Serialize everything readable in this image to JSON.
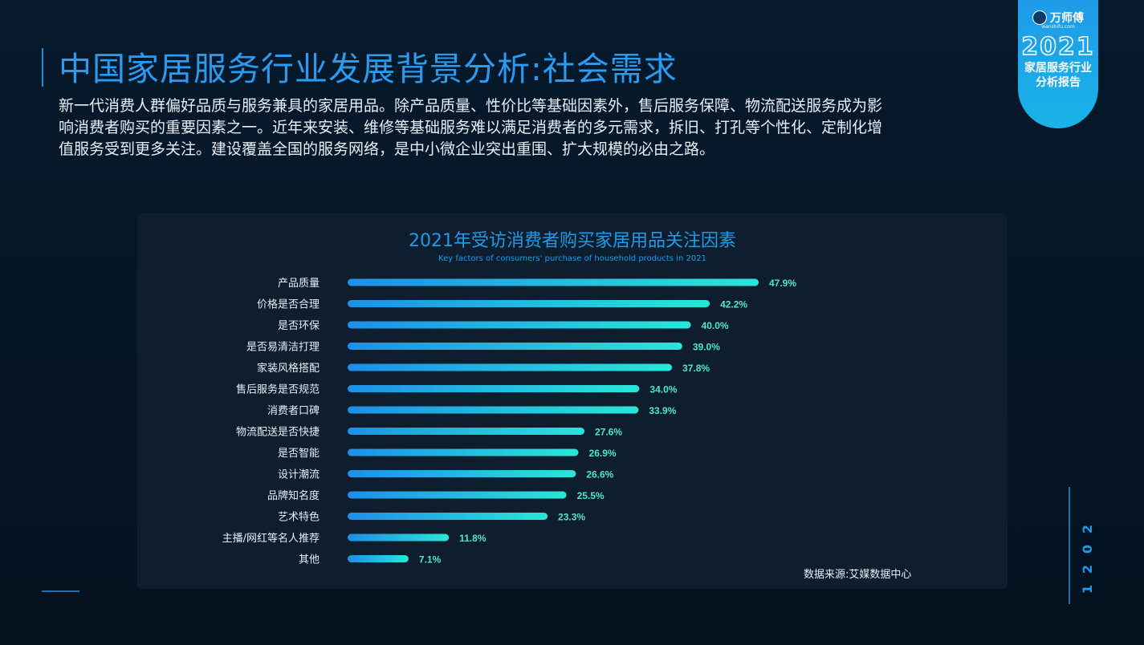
{
  "page": {
    "title": "中国家居服务行业发展背景分析:社会需求",
    "intro": "新一代消费人群偏好品质与服务兼具的家居用品。除产品质量、性价比等基础因素外，售后服务保障、物流配送服务成为影响消费者购买的重要因素之一。近年来安装、维修等基础服务难以满足消费者的多元需求，拆旧、打孔等个性化、定制化增值服务受到更多关注。建设覆盖全国的服务网络，是中小微企业突出重围、扩大规模的必由之路。"
  },
  "badge": {
    "brand": "万师傅",
    "site": "wanshifu.com",
    "year": "2021",
    "line1": "家居服务行业",
    "line2": "分析报告"
  },
  "side": {
    "year_digits": [
      "2",
      "0",
      "2",
      "1"
    ]
  },
  "chart_data": {
    "type": "bar",
    "orientation": "horizontal",
    "title": "2021年受访消费者购买家居用品关注因素",
    "subtitle": "Key factors of consumers' purchase of household products in 2021",
    "categories": [
      "产品质量",
      "价格是否合理",
      "是否环保",
      "是否易清洁打理",
      "家装风格搭配",
      "售后服务是否规范",
      "消费者口碑",
      "物流配送是否快捷",
      "是否智能",
      "设计潮流",
      "品牌知名度",
      "艺术特色",
      "主播/网红等名人推荐",
      "其他"
    ],
    "values": [
      47.9,
      42.2,
      40.0,
      39.0,
      37.8,
      34.0,
      33.9,
      27.6,
      26.9,
      26.6,
      25.5,
      23.3,
      11.8,
      7.1
    ],
    "value_labels": [
      "47.9%",
      "42.2%",
      "40.0%",
      "39.0%",
      "37.8%",
      "34.0%",
      "33.9%",
      "27.6%",
      "26.9%",
      "26.6%",
      "25.5%",
      "23.3%",
      "11.8%",
      "7.1%"
    ],
    "xlim": [
      0,
      47.9
    ],
    "grid": false,
    "legend": "none",
    "colors": {
      "bar_start": "#1e8fe8",
      "bar_end": "#29e6d8",
      "label": "#4de8c8"
    },
    "source": "数据来源:艾媒数据中心"
  }
}
